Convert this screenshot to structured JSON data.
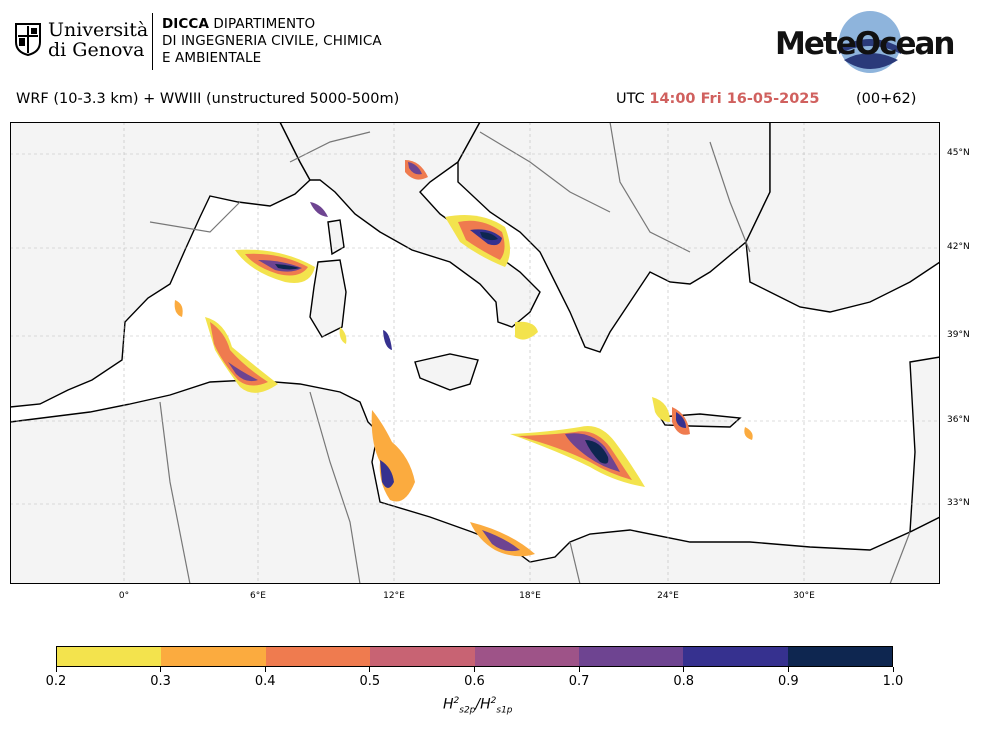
{
  "header": {
    "university_line1": "Università",
    "university_line2": "di Genova",
    "dept_line1_bold": "DICCA",
    "dept_line1_rest": " DIPARTIMENTO",
    "dept_line2": "DI INGEGNERIA CIVILE, CHIMICA",
    "dept_line3": "E AMBIENTALE",
    "brand": "MeteOcean"
  },
  "info": {
    "model": "WRF (10-3.3 km) + WWIII (unstructured 5000-500m)",
    "utc_label": "UTC",
    "time": "14:00 Fri 16-05-2025",
    "forecast_step": "(00+62)"
  },
  "map": {
    "lon_labels": [
      "0°",
      "6°E",
      "12°E",
      "18°E",
      "24°E",
      "30°E"
    ],
    "lat_labels": [
      "45°N",
      "42°N",
      "39°N",
      "36°N",
      "33°N"
    ],
    "land_color": "#f4f4f4",
    "sea_color": "#ffffff"
  },
  "colorbar": {
    "ticks": [
      "0.2",
      "0.3",
      "0.4",
      "0.5",
      "0.6",
      "0.7",
      "0.8",
      "0.9",
      "1.0"
    ],
    "colors": [
      "#f3e34d",
      "#fbab3f",
      "#ef7b4f",
      "#c86373",
      "#9e5388",
      "#6e4491",
      "#36318f",
      "#0e2650"
    ],
    "label_h": "H",
    "label_sub1": "s2p",
    "label_sub2": "s1p",
    "label_sup": "2"
  }
}
